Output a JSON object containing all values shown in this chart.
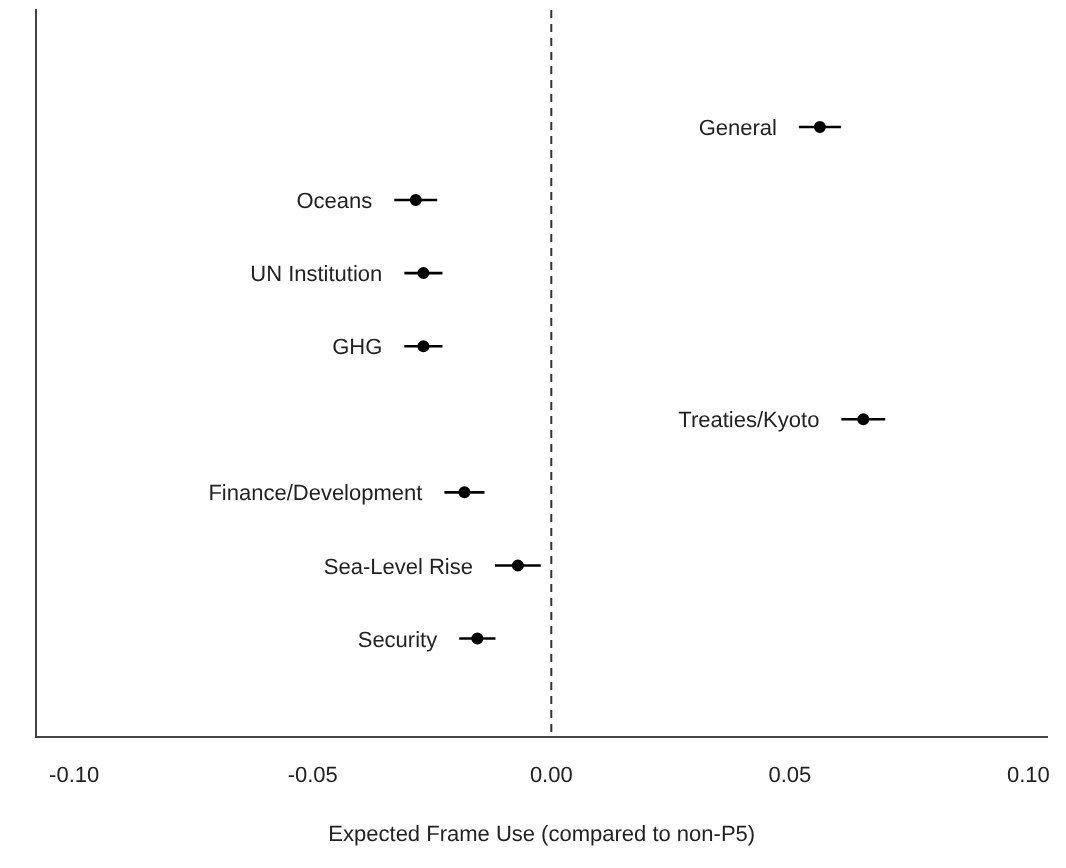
{
  "chart_data": {
    "type": "scatter",
    "orientation": "horizontal",
    "xlabel": "Expected Frame Use (compared to non-P5)",
    "categories": [
      "General",
      "Oceans",
      "UN Institution",
      "GHG",
      "Treaties/Kyoto",
      "Finance/Development",
      "Sea-Level Rise",
      "Security"
    ],
    "values": [
      0.0563,
      -0.0284,
      -0.0268,
      -0.0268,
      0.0654,
      -0.0182,
      -0.007,
      -0.0155
    ],
    "errors": [
      0.0044,
      0.0045,
      0.004,
      0.004,
      0.0046,
      0.0042,
      0.0048,
      0.0038
    ],
    "color": "#000000",
    "marker": "circle",
    "grid": false,
    "legend": false,
    "xlim": [
      -0.108,
      0.104
    ],
    "xticks": [
      {
        "value": -0.1,
        "label": "-0.10"
      },
      {
        "value": -0.05,
        "label": "-0.05"
      },
      {
        "value": 0,
        "label": "0.00"
      },
      {
        "value": 0.05,
        "label": "0.05"
      },
      {
        "value": 0.1,
        "label": "0.10"
      }
    ],
    "ref_lines": [
      {
        "axis": "x",
        "value": 0,
        "line_style": "dashed",
        "color": "#333333"
      }
    ]
  }
}
